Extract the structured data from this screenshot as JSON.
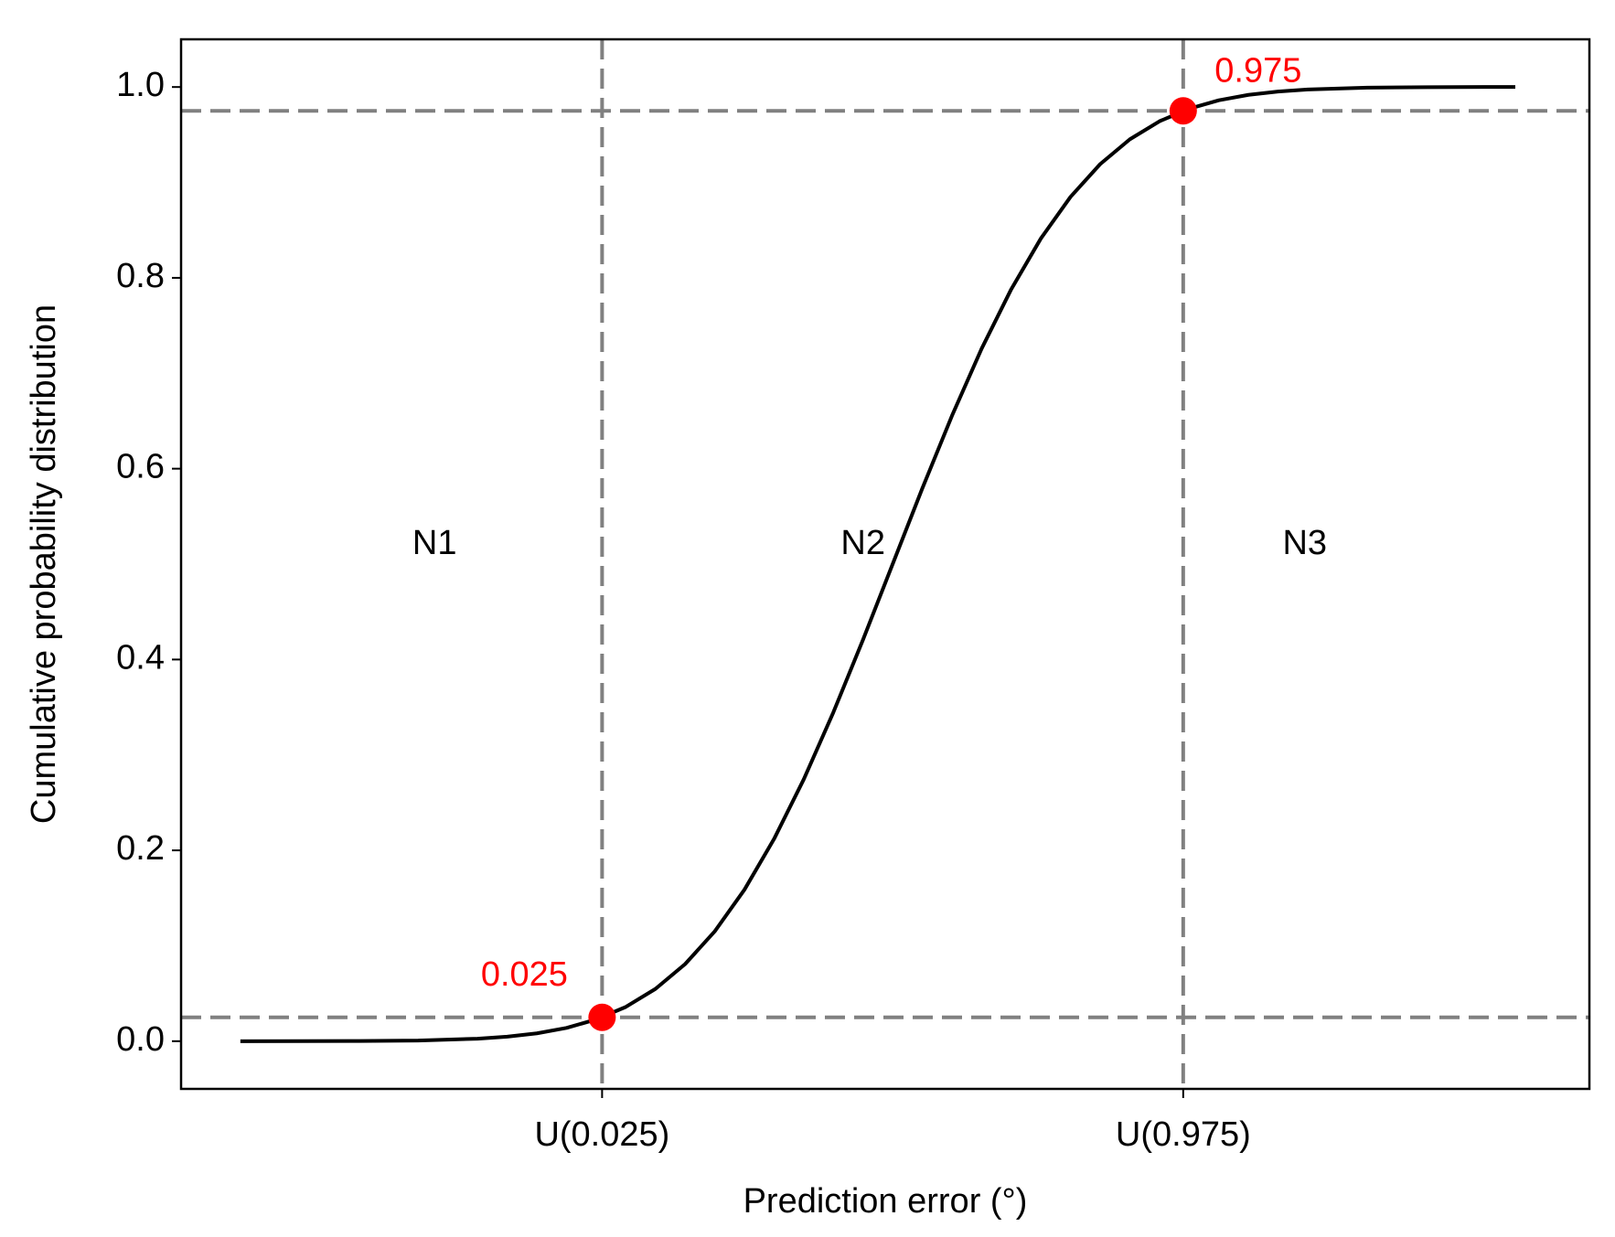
{
  "chart_data": {
    "type": "line",
    "xlabel": "Prediction error (°)",
    "ylabel": "Cumulative probability distribution",
    "xlim": [
      -4.8,
      4.7
    ],
    "ylim": [
      -0.05,
      1.05
    ],
    "xticks": [
      {
        "value": -1.96,
        "label": "U(0.025)"
      },
      {
        "value": 1.96,
        "label": "U(0.975)"
      }
    ],
    "yticks": [
      {
        "value": 0,
        "label": "0.0"
      },
      0.2,
      0.4,
      0.6,
      0.8,
      {
        "value": 1,
        "label": "1.0"
      }
    ],
    "series": [
      {
        "color": "#000000",
        "x": [
          -4.4,
          -4.0,
          -3.6,
          -3.2,
          -2.8,
          -2.6,
          -2.4,
          -2.2,
          -2.0,
          -1.8,
          -1.6,
          -1.4,
          -1.2,
          -1.0,
          -0.8,
          -0.6,
          -0.4,
          -0.2,
          0,
          0.2,
          0.4,
          0.6,
          0.8,
          1.0,
          1.2,
          1.4,
          1.6,
          1.8,
          2.0,
          2.2,
          2.4,
          2.6,
          2.8,
          3.2,
          3.6,
          4.0,
          4.2
        ],
        "values": [
          0.0,
          3e-05,
          0.0002,
          0.0007,
          0.0026,
          0.0047,
          0.0082,
          0.0139,
          0.0228,
          0.0359,
          0.0548,
          0.0808,
          0.1151,
          0.1587,
          0.2119,
          0.2743,
          0.3446,
          0.4207,
          0.5,
          0.5793,
          0.6554,
          0.7257,
          0.7881,
          0.8413,
          0.8849,
          0.9192,
          0.9452,
          0.9641,
          0.9772,
          0.9861,
          0.9918,
          0.9953,
          0.9974,
          0.9993,
          0.9998,
          1.0,
          1.0
        ]
      }
    ],
    "points": {
      "color": "#ff0000",
      "x": [
        -1.96,
        1.96
      ],
      "values": [
        0.025,
        0.975
      ],
      "value_labels": [
        "0.025",
        "0.975"
      ]
    },
    "hlines": [
      0.025,
      0.975
    ],
    "vlines": [
      -1.96,
      1.96
    ],
    "refline_color": "#808080",
    "regions": [
      "N1",
      "N2",
      "N3"
    ]
  }
}
